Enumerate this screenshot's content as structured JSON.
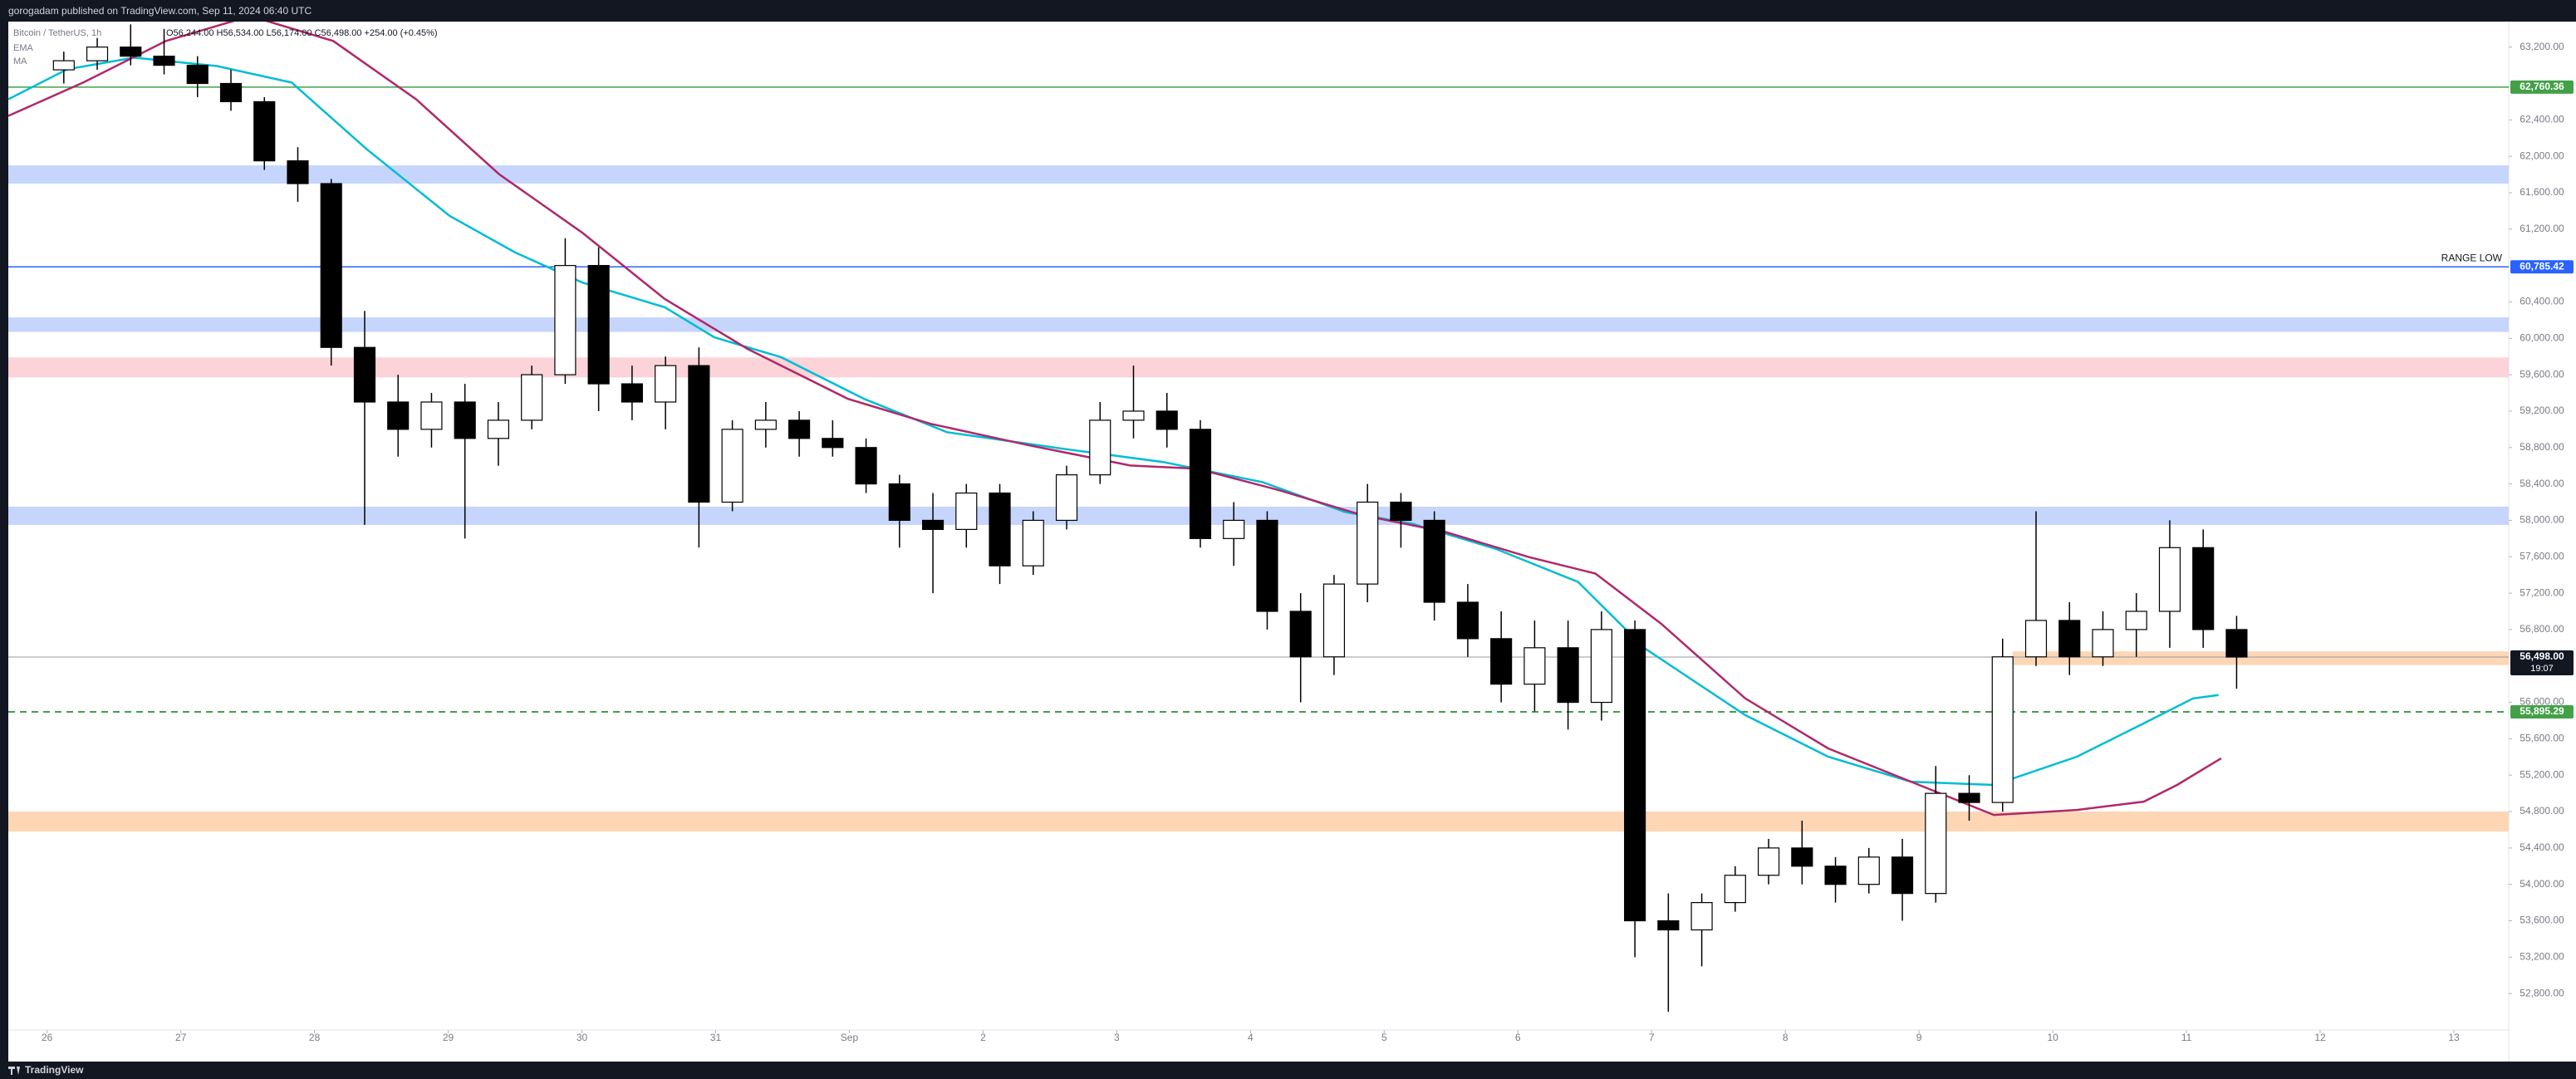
{
  "header": "gorogadam published on TradingView.com, Sep 11, 2024 06:40 UTC",
  "footer": "TradingView",
  "chart_data": {
    "type": "candlestick",
    "title": "Bitcoin / TetherUS, 1h",
    "ohlc_text": "O56,244.00 H56,534.00 L56,174.00 C56,498.00 +254.00 (+0.45%)",
    "up_color": "#ffffff",
    "down_color": "#000000",
    "wick_color": "#000000",
    "xlim": [
      -0.29,
      18.41
    ],
    "xticks": [
      {
        "value": 0,
        "label": "26"
      },
      {
        "value": 1,
        "label": "27"
      },
      {
        "value": 2,
        "label": "28"
      },
      {
        "value": 3,
        "label": "29"
      },
      {
        "value": 4,
        "label": "30"
      },
      {
        "value": 5,
        "label": "31"
      },
      {
        "value": 6,
        "label": "Sep"
      },
      {
        "value": 7,
        "label": "2"
      },
      {
        "value": 8,
        "label": "3"
      },
      {
        "value": 9,
        "label": "4"
      },
      {
        "value": 10,
        "label": "5"
      },
      {
        "value": 11,
        "label": "6"
      },
      {
        "value": 12,
        "label": "7"
      },
      {
        "value": 13,
        "label": "8"
      },
      {
        "value": 14,
        "label": "9"
      },
      {
        "value": 15,
        "label": "10"
      },
      {
        "value": 16,
        "label": "11"
      },
      {
        "value": 17,
        "label": "12"
      },
      {
        "value": 18,
        "label": "13"
      }
    ],
    "ylim": [
      52400,
      63480
    ],
    "yticks": [
      {
        "value": 52800,
        "label": "52,800.00"
      },
      {
        "value": 53200,
        "label": "53,200.00"
      },
      {
        "value": 53600,
        "label": "53,600.00"
      },
      {
        "value": 54000,
        "label": "54,000.00"
      },
      {
        "value": 54400,
        "label": "54,400.00"
      },
      {
        "value": 54800,
        "label": "54,800.00"
      },
      {
        "value": 55200,
        "label": "55,200.00"
      },
      {
        "value": 55600,
        "label": "55,600.00"
      },
      {
        "value": 56000,
        "label": "56,000.00"
      },
      {
        "value": 56800,
        "label": "56,800.00"
      },
      {
        "value": 57200,
        "label": "57,200.00"
      },
      {
        "value": 57600,
        "label": "57,600.00"
      },
      {
        "value": 58000,
        "label": "58,000.00"
      },
      {
        "value": 58400,
        "label": "58,400.00"
      },
      {
        "value": 58800,
        "label": "58,800.00"
      },
      {
        "value": 59200,
        "label": "59,200.00"
      },
      {
        "value": 59600,
        "label": "59,600.00"
      },
      {
        "value": 60000,
        "label": "60,000.00"
      },
      {
        "value": 60400,
        "label": "60,400.00"
      },
      {
        "value": 61200,
        "label": "61,200.00"
      },
      {
        "value": 61600,
        "label": "61,600.00"
      },
      {
        "value": 62000,
        "label": "62,000.00"
      },
      {
        "value": 62400,
        "label": "62,400.00"
      },
      {
        "value": 63200,
        "label": "63,200.00"
      }
    ],
    "x": [
      0.125,
      0.375,
      0.625,
      0.875,
      1.125,
      1.375,
      1.625,
      1.875,
      2.125,
      2.375,
      2.625,
      2.875,
      3.125,
      3.375,
      3.625,
      3.875,
      4.125,
      4.375,
      4.625,
      4.875,
      5.125,
      5.375,
      5.625,
      5.875,
      6.125,
      6.375,
      6.625,
      6.875,
      7.125,
      7.375,
      7.625,
      7.875,
      8.125,
      8.375,
      8.625,
      8.875,
      9.125,
      9.375,
      9.625,
      9.875,
      10.125,
      10.375,
      10.625,
      10.875,
      11.125,
      11.375,
      11.625,
      11.875,
      12.125,
      12.375,
      12.625,
      12.875,
      13.125,
      13.375,
      13.625,
      13.875,
      14.125,
      14.375,
      14.625,
      14.875,
      15.125,
      15.375,
      15.625,
      15.875,
      16.125,
      16.375
    ],
    "open": [
      62950,
      63050,
      63200,
      63100,
      63000,
      62800,
      62600,
      61950,
      61700,
      59900,
      59300,
      59000,
      59300,
      58900,
      59100,
      59600,
      60800,
      59500,
      59300,
      59700,
      58200,
      59000,
      59100,
      58900,
      58800,
      58400,
      58000,
      57900,
      58300,
      57500,
      58000,
      58500,
      59100,
      59200,
      59000,
      57800,
      58000,
      57000,
      56500,
      57300,
      58200,
      58000,
      57100,
      56700,
      56200,
      56600,
      56000,
      56800,
      53600,
      53500,
      53800,
      54100,
      54400,
      54200,
      54000,
      54300,
      53900,
      55000,
      54900,
      56500,
      56900,
      56500,
      56800,
      57000,
      57700,
      56800
    ],
    "high": [
      63150,
      63300,
      63450,
      63400,
      63100,
      62950,
      62650,
      62100,
      61750,
      60300,
      59600,
      59400,
      59500,
      59300,
      59700,
      61100,
      61000,
      59700,
      59800,
      59900,
      59100,
      59300,
      59200,
      59100,
      58900,
      58500,
      58300,
      58400,
      58400,
      58100,
      58600,
      59300,
      59700,
      59400,
      59100,
      58200,
      58100,
      57200,
      57400,
      58400,
      58300,
      58100,
      57300,
      57000,
      56900,
      56900,
      57000,
      56900,
      53900,
      53900,
      54200,
      54500,
      54700,
      54300,
      54400,
      54500,
      55300,
      55200,
      56700,
      58100,
      57100,
      57000,
      57200,
      58000,
      57900,
      56950
    ],
    "low": [
      62800,
      62950,
      63000,
      62900,
      62650,
      62500,
      61850,
      61500,
      59700,
      57950,
      58700,
      58800,
      57800,
      58600,
      59000,
      59500,
      59200,
      59100,
      59000,
      57700,
      58100,
      58800,
      58700,
      58700,
      58300,
      57700,
      57200,
      57700,
      57300,
      57400,
      57900,
      58400,
      58900,
      58800,
      57700,
      57500,
      56800,
      56000,
      56300,
      57100,
      57700,
      56900,
      56500,
      56000,
      55900,
      55700,
      55800,
      53200,
      52600,
      53100,
      53700,
      54000,
      54000,
      53800,
      53900,
      53600,
      53800,
      54700,
      54800,
      56400,
      56300,
      56400,
      56500,
      56600,
      56600,
      56150
    ],
    "close": [
      63050,
      63200,
      63100,
      63000,
      62800,
      62600,
      61950,
      61700,
      59900,
      59300,
      59000,
      59300,
      58900,
      59100,
      59600,
      60800,
      59500,
      59300,
      59700,
      58200,
      59000,
      59100,
      58900,
      58800,
      58400,
      58000,
      57900,
      58300,
      57500,
      58000,
      58500,
      59100,
      59200,
      59000,
      57800,
      58000,
      57000,
      56500,
      57300,
      58200,
      58000,
      57100,
      56700,
      56200,
      56600,
      56000,
      56800,
      53600,
      53500,
      53800,
      54100,
      54400,
      54200,
      54000,
      54300,
      53900,
      55000,
      54900,
      56500,
      56900,
      56500,
      56800,
      57000,
      57700,
      56800,
      56498
    ],
    "lines": [
      {
        "name": "EMA",
        "color": "#00bcd4",
        "x": [
          -0.29,
          0.15,
          0.65,
          1.27,
          1.83,
          2.39,
          3.01,
          3.5,
          4.0,
          4.62,
          4.99,
          5.49,
          6.11,
          6.73,
          7.6,
          8.35,
          9.09,
          9.71,
          10.21,
          10.83,
          11.45,
          11.95,
          12.7,
          13.32,
          13.94,
          14.56,
          15.18,
          15.68,
          16.05,
          16.24
        ],
        "values": [
          62627,
          62956,
          63084,
          62992,
          62810,
          62078,
          61346,
          60944,
          60615,
          60341,
          60011,
          59792,
          59335,
          58969,
          58786,
          58640,
          58420,
          58091,
          57963,
          57689,
          57323,
          56592,
          55860,
          55403,
          55128,
          55092,
          55403,
          55769,
          56043,
          56080
        ]
      },
      {
        "name": "MA",
        "color": "#b0286a",
        "x": [
          -0.29,
          0.27,
          0.89,
          1.52,
          2.14,
          2.76,
          3.38,
          4.0,
          4.62,
          5.24,
          5.99,
          6.61,
          7.35,
          8.1,
          8.6,
          9.22,
          9.84,
          10.46,
          11.08,
          11.58,
          12.07,
          12.7,
          13.32,
          13.94,
          14.56,
          15.18,
          15.68,
          15.93,
          16.26
        ],
        "values": [
          62444,
          62810,
          63267,
          63541,
          63267,
          62627,
          61804,
          61164,
          60432,
          59883,
          59335,
          59060,
          58823,
          58603,
          58567,
          58329,
          58055,
          57872,
          57597,
          57415,
          56866,
          56043,
          55494,
          55128,
          54763,
          54818,
          54909,
          55092,
          55385
        ]
      }
    ],
    "zones": [
      {
        "from": 61700,
        "to": 61900,
        "color": "#c6d5fb"
      },
      {
        "from": 60070,
        "to": 60230,
        "color": "#c6d5fb"
      },
      {
        "from": 59570,
        "to": 59790,
        "color": "#fbd3d8"
      },
      {
        "from": 57950,
        "to": 58150,
        "color": "#c6d5fb"
      },
      {
        "from": 56410,
        "to": 56560,
        "color": "#fdd6b6",
        "start": 14.7
      },
      {
        "from": 54580,
        "to": 54800,
        "color": "#fdd6b6"
      }
    ],
    "levels": [
      {
        "value": 62760.36,
        "label": "62,760.36",
        "color": "#43a047",
        "style": "solid"
      },
      {
        "value": 60785.42,
        "label": "60,785.42",
        "color": "#2962ff",
        "style": "solid",
        "note": "RANGE LOW"
      },
      {
        "value": 56498,
        "label": "56,498.00",
        "color": "#131722",
        "style": "solid",
        "timer": "19:07"
      },
      {
        "value": 55895.29,
        "label": "55,895.29",
        "color": "#43a047",
        "style": "dashed"
      }
    ]
  }
}
